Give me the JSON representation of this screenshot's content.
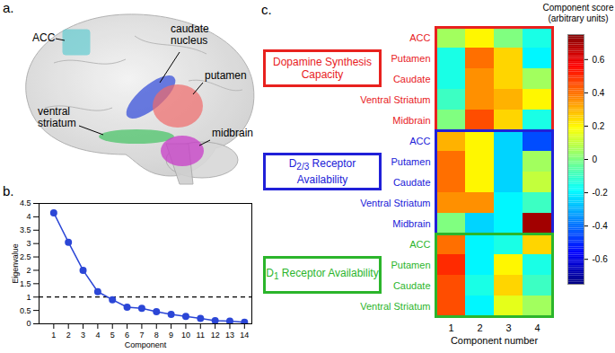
{
  "diagram": {
    "panel_label": "a.",
    "regions": [
      {
        "label": "ACC",
        "color": "#4fc9cf"
      },
      {
        "label": "caudate nucleus",
        "color": "#3a52d9"
      },
      {
        "label": "putamen",
        "color": "#f06a6a"
      },
      {
        "label": "ventral striatum",
        "color": "#4cc46a"
      },
      {
        "label": "midbrain",
        "color": "#c83cc8"
      }
    ]
  },
  "chart_data": [
    {
      "type": "line",
      "panel_label": "b.",
      "x": [
        1,
        2,
        3,
        4,
        5,
        6,
        7,
        8,
        9,
        10,
        11,
        12,
        13,
        14
      ],
      "values": [
        4.15,
        3.05,
        2.0,
        1.2,
        0.9,
        0.62,
        0.58,
        0.45,
        0.35,
        0.28,
        0.2,
        0.12,
        0.1,
        0.06
      ],
      "xlim": [
        0,
        14.5
      ],
      "xticks": [
        1,
        2,
        3,
        4,
        5,
        6,
        7,
        8,
        9,
        10,
        11,
        12,
        13,
        14
      ],
      "ylim": [
        0,
        4.5
      ],
      "yticks": [
        0,
        0.5,
        1,
        1.5,
        2,
        2.5,
        3,
        3.5,
        4,
        4.5
      ],
      "xlabel": "Component",
      "ylabel": "Eigenvalue",
      "color": "#2b46d6",
      "marker": "circle",
      "reference_y": 1
    },
    {
      "type": "heatmap",
      "panel_label": "c.",
      "x": [
        1,
        2,
        3,
        4
      ],
      "xticks": [
        1,
        2,
        3,
        4
      ],
      "xlabel": "Component number",
      "groups": [
        {
          "name": "Dopamine Synthesis Capacity",
          "color": "#e8211e",
          "rows": [
            "ACC",
            "Putamen",
            "Caudate",
            "Ventral Striatum",
            "Midbrain"
          ],
          "values": [
            [
              0.05,
              0.2,
              0.0,
              -0.15
            ],
            [
              -0.15,
              0.4,
              0.25,
              -0.2
            ],
            [
              -0.15,
              0.35,
              0.25,
              0.05
            ],
            [
              -0.1,
              0.35,
              0.3,
              0.2
            ],
            [
              0.0,
              0.45,
              0.25,
              -0.15
            ]
          ]
        },
        {
          "name": "D2/3 Receptor Availability",
          "color": "#2020d8",
          "rows": [
            "ACC",
            "Putamen",
            "Caudate",
            "Ventral Striatum",
            "Midbrain"
          ],
          "values": [
            [
              0.3,
              0.2,
              -0.25,
              -0.45
            ],
            [
              0.4,
              0.2,
              -0.25,
              0.05
            ],
            [
              0.4,
              0.2,
              -0.25,
              0.1
            ],
            [
              0.35,
              0.35,
              -0.2,
              -0.1
            ],
            [
              0.0,
              -0.25,
              -0.2,
              0.7
            ]
          ]
        },
        {
          "name": "D1 Receptor Availability",
          "color": "#2bb52b",
          "rows": [
            "ACC",
            "Putamen",
            "Caudate",
            "Ventral Striatum"
          ],
          "values": [
            [
              0.4,
              -0.2,
              -0.15,
              0.25
            ],
            [
              0.5,
              -0.2,
              0.2,
              -0.15
            ],
            [
              0.45,
              -0.15,
              0.25,
              -0.1
            ],
            [
              0.45,
              -0.2,
              0.15,
              0.05
            ]
          ]
        }
      ],
      "colorbar": {
        "label": "Component score (arbitrary units)",
        "range": [
          -0.75,
          0.75
        ],
        "ticks": [
          -0.6,
          -0.4,
          -0.2,
          0,
          0.2,
          0.4,
          0.6
        ]
      }
    }
  ]
}
